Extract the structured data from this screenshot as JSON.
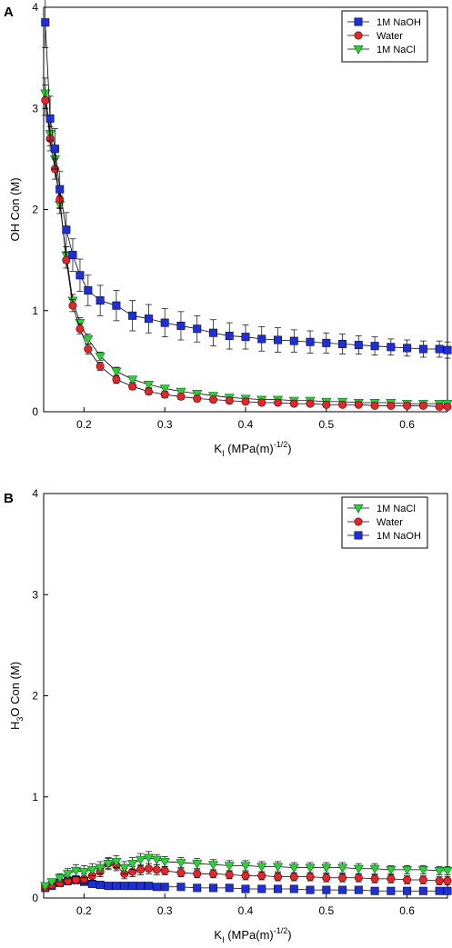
{
  "chart_data": [
    {
      "panel": "A",
      "type": "scatter",
      "xlabel_main": "K",
      "xlabel_sub": "I",
      "xlabel_rest": " (MPa(m)",
      "xlabel_sup": "-1/2",
      "xlabel_end": ")",
      "ylabel_pre": "OH Con (M)",
      "xlim": [
        0.15,
        0.65
      ],
      "ylim": [
        0,
        4
      ],
      "xticks": [
        0.2,
        0.3,
        0.4,
        0.5,
        0.6
      ],
      "xtick_labels": [
        "0.2",
        "0.3",
        "0.4",
        "0.5",
        "0.6"
      ],
      "yticks": [
        0,
        1,
        2,
        3,
        4
      ],
      "ytick_labels": [
        "0",
        "1",
        "2",
        "3",
        "4"
      ],
      "legend_position": "top-right",
      "legend": [
        "1M NaOH",
        "Water",
        "1M NaCl"
      ],
      "series": [
        {
          "name": "1M NaOH",
          "marker": "square",
          "color": "#1f2fd6",
          "x": [
            0.152,
            0.158,
            0.164,
            0.17,
            0.178,
            0.186,
            0.195,
            0.205,
            0.22,
            0.24,
            0.26,
            0.28,
            0.3,
            0.32,
            0.34,
            0.36,
            0.38,
            0.4,
            0.42,
            0.44,
            0.46,
            0.48,
            0.5,
            0.52,
            0.54,
            0.56,
            0.58,
            0.6,
            0.62,
            0.64,
            0.65
          ],
          "y": [
            3.85,
            2.9,
            2.6,
            2.2,
            1.8,
            1.55,
            1.35,
            1.2,
            1.1,
            1.05,
            0.95,
            0.92,
            0.88,
            0.85,
            0.82,
            0.78,
            0.75,
            0.74,
            0.72,
            0.71,
            0.7,
            0.69,
            0.68,
            0.67,
            0.66,
            0.65,
            0.64,
            0.63,
            0.62,
            0.62,
            0.61
          ],
          "err": [
            0.25,
            0.22,
            0.2,
            0.18,
            0.17,
            0.16,
            0.16,
            0.15,
            0.15,
            0.15,
            0.15,
            0.14,
            0.14,
            0.14,
            0.13,
            0.13,
            0.13,
            0.12,
            0.12,
            0.12,
            0.11,
            0.11,
            0.1,
            0.1,
            0.09,
            0.09,
            0.08,
            0.08,
            0.08,
            0.08,
            0.08
          ]
        },
        {
          "name": "Water",
          "marker": "circle",
          "color": "#e2262c",
          "x": [
            0.152,
            0.158,
            0.164,
            0.17,
            0.178,
            0.186,
            0.195,
            0.205,
            0.22,
            0.24,
            0.26,
            0.28,
            0.3,
            0.32,
            0.34,
            0.36,
            0.38,
            0.4,
            0.42,
            0.44,
            0.46,
            0.48,
            0.5,
            0.52,
            0.54,
            0.56,
            0.58,
            0.6,
            0.62,
            0.64,
            0.65
          ],
          "y": [
            3.08,
            2.7,
            2.4,
            2.1,
            1.5,
            1.05,
            0.82,
            0.62,
            0.45,
            0.32,
            0.25,
            0.2,
            0.17,
            0.15,
            0.13,
            0.12,
            0.11,
            0.1,
            0.09,
            0.09,
            0.08,
            0.08,
            0.07,
            0.07,
            0.07,
            0.06,
            0.06,
            0.06,
            0.06,
            0.05,
            0.05
          ],
          "err": [
            0.15,
            0.12,
            0.1,
            0.09,
            0.08,
            0.06,
            0.05,
            0.05,
            0.04,
            0.04,
            0.03,
            0.03,
            0.03,
            0.03,
            0.03,
            0.02,
            0.02,
            0.02,
            0.02,
            0.02,
            0.02,
            0.02,
            0.02,
            0.02,
            0.02,
            0.02,
            0.02,
            0.02,
            0.02,
            0.02,
            0.02
          ]
        },
        {
          "name": "1M NaCl",
          "marker": "triangle-down",
          "color": "#2ed12e",
          "x": [
            0.152,
            0.158,
            0.164,
            0.17,
            0.178,
            0.186,
            0.195,
            0.205,
            0.22,
            0.24,
            0.26,
            0.28,
            0.3,
            0.32,
            0.34,
            0.36,
            0.38,
            0.4,
            0.42,
            0.44,
            0.46,
            0.48,
            0.5,
            0.52,
            0.54,
            0.56,
            0.58,
            0.6,
            0.62,
            0.64,
            0.65
          ],
          "y": [
            3.15,
            2.75,
            2.5,
            2.05,
            1.55,
            1.1,
            0.88,
            0.72,
            0.55,
            0.4,
            0.32,
            0.27,
            0.23,
            0.2,
            0.18,
            0.16,
            0.14,
            0.13,
            0.12,
            0.12,
            0.11,
            0.11,
            0.1,
            0.1,
            0.09,
            0.09,
            0.09,
            0.08,
            0.08,
            0.08,
            0.08
          ],
          "err": [
            0.15,
            0.12,
            0.1,
            0.09,
            0.08,
            0.06,
            0.05,
            0.05,
            0.04,
            0.04,
            0.03,
            0.03,
            0.03,
            0.03,
            0.03,
            0.02,
            0.02,
            0.02,
            0.02,
            0.02,
            0.02,
            0.02,
            0.02,
            0.02,
            0.02,
            0.02,
            0.02,
            0.02,
            0.02,
            0.02,
            0.02
          ]
        }
      ]
    },
    {
      "panel": "B",
      "type": "scatter",
      "xlabel_main": "K",
      "xlabel_sub": "I",
      "xlabel_rest": " (MPa(m)",
      "xlabel_sup": "-1/2",
      "xlabel_end": ")",
      "ylabel_h": "H",
      "ylabel_sub": "3",
      "ylabel_rest": "O Con (M)",
      "xlim": [
        0.15,
        0.65
      ],
      "ylim": [
        0,
        4
      ],
      "xticks": [
        0.2,
        0.3,
        0.4,
        0.5,
        0.6
      ],
      "xtick_labels": [
        "0.2",
        "0.3",
        "0.4",
        "0.5",
        "0.6"
      ],
      "yticks": [
        0,
        1,
        2,
        3,
        4
      ],
      "ytick_labels": [
        "0",
        "1",
        "2",
        "3",
        "4"
      ],
      "legend_position": "top-right",
      "legend": [
        "1M NaCl",
        "Water",
        "1M NaOH"
      ],
      "series": [
        {
          "name": "1M NaCl",
          "marker": "triangle-down",
          "color": "#2ed12e",
          "x": [
            0.152,
            0.16,
            0.17,
            0.18,
            0.19,
            0.2,
            0.21,
            0.22,
            0.23,
            0.24,
            0.25,
            0.26,
            0.27,
            0.28,
            0.29,
            0.3,
            0.32,
            0.34,
            0.36,
            0.38,
            0.4,
            0.42,
            0.44,
            0.46,
            0.48,
            0.5,
            0.52,
            0.54,
            0.56,
            0.58,
            0.6,
            0.62,
            0.64,
            0.65
          ],
          "y": [
            0.12,
            0.16,
            0.2,
            0.24,
            0.27,
            0.26,
            0.28,
            0.3,
            0.34,
            0.36,
            0.3,
            0.34,
            0.38,
            0.4,
            0.38,
            0.36,
            0.35,
            0.34,
            0.33,
            0.32,
            0.32,
            0.31,
            0.31,
            0.3,
            0.3,
            0.3,
            0.3,
            0.29,
            0.29,
            0.28,
            0.28,
            0.28,
            0.27,
            0.27
          ],
          "err": [
            0.03,
            0.03,
            0.04,
            0.05,
            0.06,
            0.06,
            0.06,
            0.06,
            0.06,
            0.06,
            0.06,
            0.06,
            0.06,
            0.06,
            0.05,
            0.05,
            0.05,
            0.05,
            0.05,
            0.05,
            0.05,
            0.05,
            0.05,
            0.05,
            0.05,
            0.05,
            0.05,
            0.05,
            0.05,
            0.04,
            0.04,
            0.04,
            0.04,
            0.04
          ]
        },
        {
          "name": "Water",
          "marker": "circle",
          "color": "#e2262c",
          "x": [
            0.152,
            0.16,
            0.17,
            0.18,
            0.19,
            0.2,
            0.21,
            0.22,
            0.23,
            0.24,
            0.25,
            0.26,
            0.27,
            0.28,
            0.29,
            0.3,
            0.32,
            0.34,
            0.36,
            0.38,
            0.4,
            0.42,
            0.44,
            0.46,
            0.48,
            0.5,
            0.52,
            0.54,
            0.56,
            0.58,
            0.6,
            0.62,
            0.64,
            0.65
          ],
          "y": [
            0.1,
            0.13,
            0.15,
            0.17,
            0.18,
            0.19,
            0.22,
            0.26,
            0.34,
            0.32,
            0.24,
            0.26,
            0.28,
            0.29,
            0.28,
            0.27,
            0.25,
            0.24,
            0.24,
            0.23,
            0.22,
            0.22,
            0.21,
            0.21,
            0.21,
            0.2,
            0.2,
            0.2,
            0.19,
            0.19,
            0.18,
            0.18,
            0.17,
            0.17
          ],
          "err": [
            0.02,
            0.03,
            0.03,
            0.04,
            0.04,
            0.05,
            0.05,
            0.05,
            0.05,
            0.05,
            0.05,
            0.05,
            0.05,
            0.05,
            0.05,
            0.04,
            0.04,
            0.04,
            0.04,
            0.04,
            0.04,
            0.04,
            0.04,
            0.04,
            0.04,
            0.04,
            0.04,
            0.04,
            0.04,
            0.04,
            0.04,
            0.04,
            0.04,
            0.04
          ]
        },
        {
          "name": "1M NaOH",
          "marker": "square",
          "color": "#1f2fd6",
          "x": [
            0.152,
            0.16,
            0.17,
            0.18,
            0.19,
            0.2,
            0.21,
            0.22,
            0.23,
            0.24,
            0.25,
            0.26,
            0.27,
            0.28,
            0.29,
            0.3,
            0.32,
            0.34,
            0.36,
            0.38,
            0.4,
            0.42,
            0.44,
            0.46,
            0.48,
            0.5,
            0.52,
            0.54,
            0.56,
            0.58,
            0.6,
            0.62,
            0.64,
            0.65
          ],
          "y": [
            0.1,
            0.12,
            0.15,
            0.17,
            0.18,
            0.16,
            0.14,
            0.13,
            0.12,
            0.12,
            0.12,
            0.12,
            0.12,
            0.12,
            0.11,
            0.11,
            0.11,
            0.1,
            0.1,
            0.1,
            0.09,
            0.09,
            0.09,
            0.09,
            0.08,
            0.08,
            0.08,
            0.08,
            0.07,
            0.07,
            0.07,
            0.07,
            0.07,
            0.07
          ],
          "err": [
            0.03,
            0.03,
            0.03,
            0.03,
            0.03,
            0.03,
            0.02,
            0.02,
            0.02,
            0.02,
            0.02,
            0.02,
            0.02,
            0.02,
            0.02,
            0.02,
            0.02,
            0.02,
            0.02,
            0.02,
            0.02,
            0.02,
            0.02,
            0.02,
            0.02,
            0.02,
            0.02,
            0.02,
            0.02,
            0.02,
            0.02,
            0.02,
            0.02,
            0.02
          ]
        }
      ]
    }
  ]
}
